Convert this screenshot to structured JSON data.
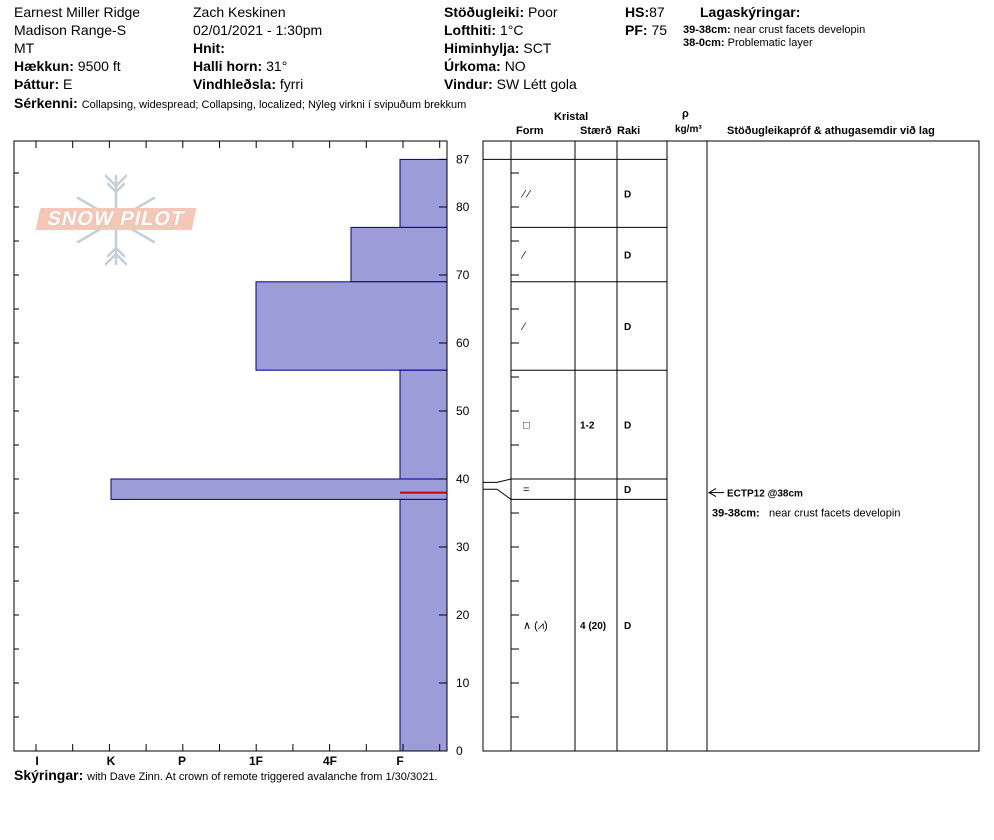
{
  "header": {
    "location": "Earnest Miller Ridge",
    "range": "Madison Range-S",
    "state": "MT",
    "elevation": {
      "label": "Hækkun:",
      "value": "9500 ft"
    },
    "aspect": {
      "label": "Þáttur:",
      "value": "E"
    },
    "observer": "Zach Keskinen",
    "datetime": "02/01/2021 - 1:30pm",
    "coords": {
      "label": "Hnit:",
      "value": ""
    },
    "slope": {
      "label": "Halli horn:",
      "value": "31°"
    },
    "wind_loading": {
      "label": "Vindhleðsla:",
      "value": "fyrri"
    },
    "stability": {
      "label": "Stöðugleiki:",
      "value": "Poor"
    },
    "air_temp": {
      "label": "Lofthiti:",
      "value": "1°C"
    },
    "sky": {
      "label": "Himinhylja:",
      "value": "SCT"
    },
    "precip": {
      "label": "Úrkoma:",
      "value": "NO"
    },
    "wind": {
      "label": "Vindur:",
      "value": "SW Létt gola"
    },
    "hs": {
      "label": "HS:",
      "value": "87"
    },
    "pf": {
      "label": "PF:",
      "value": "75"
    },
    "layer_notes_title": "Lagaskýringar:",
    "layer_notes": [
      {
        "range": "39-38cm:",
        "text": "near crust facets developin"
      },
      {
        "range": "38-0cm:",
        "text": "Problematic layer"
      }
    ],
    "features": {
      "label": "Sérkenni:",
      "value": "Collapsing, widespread;  Collapsing, localized;  Nýleg virkni í svipuðum brekkum"
    }
  },
  "logo_text": "SNOW PILOT",
  "columns": {
    "crystal": "Kristal",
    "form": "Form",
    "size": "Stærð",
    "moisture": "Raki",
    "rho": "ρ",
    "density_unit": "kg/m³",
    "tests": "Stöðugleikapróf & athugasemdir við lag"
  },
  "hardness_labels": [
    "I",
    "K",
    "P",
    "1F",
    "4F",
    "F"
  ],
  "depth_labels": [
    "87",
    "80",
    "70",
    "60",
    "50",
    "40",
    "30",
    "20",
    "10",
    "0"
  ],
  "layers": [
    {
      "top": 87,
      "bottom": 77,
      "form": "⁄ ⁄",
      "size": "",
      "moisture": "D",
      "hardness": "F"
    },
    {
      "top": 77,
      "bottom": 69,
      "form": "⁄",
      "size": "",
      "moisture": "D",
      "hardness": "4F+"
    },
    {
      "top": 69,
      "bottom": 56,
      "form": "⁄",
      "size": "",
      "moisture": "D",
      "hardness": "1F"
    },
    {
      "top": 56,
      "bottom": 40,
      "form": "□",
      "size": "1-2",
      "moisture": "D",
      "hardness": "F"
    },
    {
      "top": 40,
      "bottom": 37,
      "form": "=",
      "size": "",
      "moisture": "D",
      "hardness": "K"
    },
    {
      "top": 37,
      "bottom": 0,
      "form": "∧ (⩘)",
      "size": "4 (20)",
      "moisture": "D",
      "hardness": "F"
    }
  ],
  "test_result": "ECTP12 @38cm",
  "test_note": {
    "range": "39-38cm:",
    "text": "near crust facets developin"
  },
  "comments": {
    "label": "Skýringar:",
    "value": "with Dave Zinn. At crown of remote triggered avalanche from 1/30/3021."
  },
  "colors": {
    "bar_fill": "#9c9cd8",
    "bar_stroke": "#00008b",
    "weak_layer": "#cc0000"
  }
}
